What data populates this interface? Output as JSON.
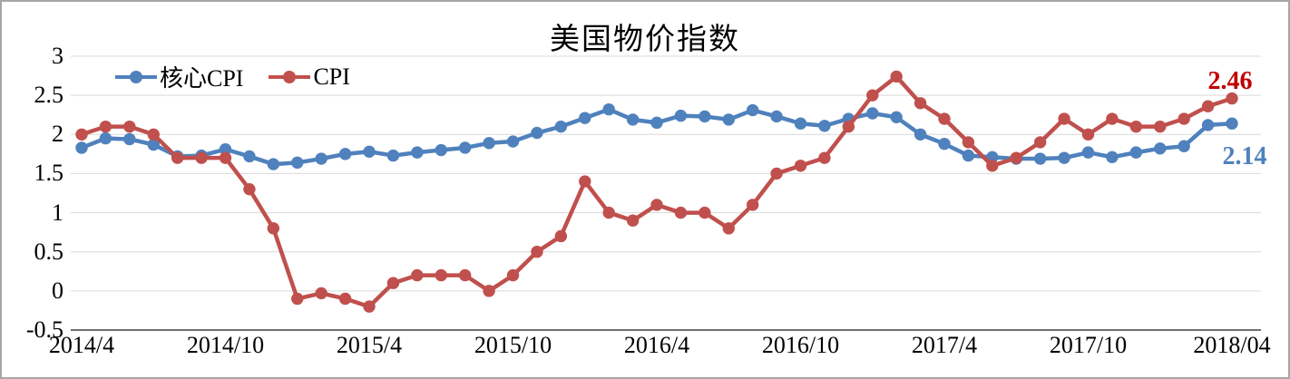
{
  "chart_data": {
    "type": "line",
    "title": "美国物价指数",
    "xlabel": "",
    "ylabel": "",
    "ylim": [
      -0.5,
      3
    ],
    "grid": true,
    "legend_position": "top-left-inside",
    "y_ticks": [
      "3",
      "2.5",
      "2",
      "1.5",
      "1",
      "0.5",
      "0",
      "-0.5"
    ],
    "x_ticks": [
      {
        "index": 0,
        "label": "2014/4"
      },
      {
        "index": 6,
        "label": "2014/10"
      },
      {
        "index": 12,
        "label": "2015/4"
      },
      {
        "index": 18,
        "label": "2015/10"
      },
      {
        "index": 24,
        "label": "2016/4"
      },
      {
        "index": 30,
        "label": "2016/10"
      },
      {
        "index": 36,
        "label": "2017/4"
      },
      {
        "index": 42,
        "label": "2017/10"
      },
      {
        "index": 48,
        "label": "2018/04"
      }
    ],
    "categories": [
      "2014/4",
      "2014/5",
      "2014/6",
      "2014/7",
      "2014/8",
      "2014/9",
      "2014/10",
      "2014/11",
      "2014/12",
      "2015/1",
      "2015/2",
      "2015/3",
      "2015/4",
      "2015/5",
      "2015/6",
      "2015/7",
      "2015/8",
      "2015/9",
      "2015/10",
      "2015/11",
      "2015/12",
      "2016/1",
      "2016/2",
      "2016/3",
      "2016/4",
      "2016/5",
      "2016/6",
      "2016/7",
      "2016/8",
      "2016/9",
      "2016/10",
      "2016/11",
      "2016/12",
      "2017/1",
      "2017/2",
      "2017/3",
      "2017/4",
      "2017/5",
      "2017/6",
      "2017/7",
      "2017/8",
      "2017/9",
      "2017/10",
      "2017/11",
      "2017/12",
      "2018/1",
      "2018/2",
      "2018/3",
      "2018/4"
    ],
    "series": [
      {
        "name": "核心CPI",
        "slug": "core-cpi",
        "color": "#4f81bd",
        "values": [
          1.83,
          1.95,
          1.94,
          1.87,
          1.72,
          1.73,
          1.81,
          1.72,
          1.62,
          1.64,
          1.69,
          1.75,
          1.78,
          1.73,
          1.77,
          1.8,
          1.83,
          1.89,
          1.91,
          2.02,
          2.1,
          2.21,
          2.32,
          2.19,
          2.15,
          2.24,
          2.23,
          2.19,
          2.31,
          2.23,
          2.14,
          2.11,
          2.2,
          2.27,
          2.22,
          2.0,
          1.88,
          1.73,
          1.71,
          1.69,
          1.69,
          1.7,
          1.77,
          1.71,
          1.77,
          1.82,
          1.85,
          2.12,
          2.14
        ]
      },
      {
        "name": "CPI",
        "slug": "cpi",
        "color": "#c0504d",
        "values": [
          2.0,
          2.1,
          2.1,
          2.0,
          1.7,
          1.7,
          1.7,
          1.3,
          0.8,
          -0.1,
          -0.03,
          -0.1,
          -0.2,
          0.1,
          0.2,
          0.2,
          0.2,
          0.0,
          0.2,
          0.5,
          0.7,
          1.4,
          1.0,
          0.9,
          1.1,
          1.0,
          1.0,
          0.8,
          1.1,
          1.5,
          1.6,
          1.7,
          2.1,
          2.5,
          2.74,
          2.4,
          2.2,
          1.9,
          1.6,
          1.7,
          1.9,
          2.2,
          2.0,
          2.2,
          2.1,
          2.1,
          2.2,
          2.36,
          2.46
        ]
      }
    ],
    "end_labels": [
      {
        "series": "CPI",
        "text": "2.46",
        "color": "#c00000"
      },
      {
        "series": "核心CPI",
        "text": "2.14",
        "color": "#4f81bd"
      }
    ],
    "colors": {
      "gridline": "#d9d9d9",
      "axis_line": "#404040",
      "text": "#000000",
      "frame_border": "#a6a6a6",
      "background": "#ffffff"
    }
  }
}
